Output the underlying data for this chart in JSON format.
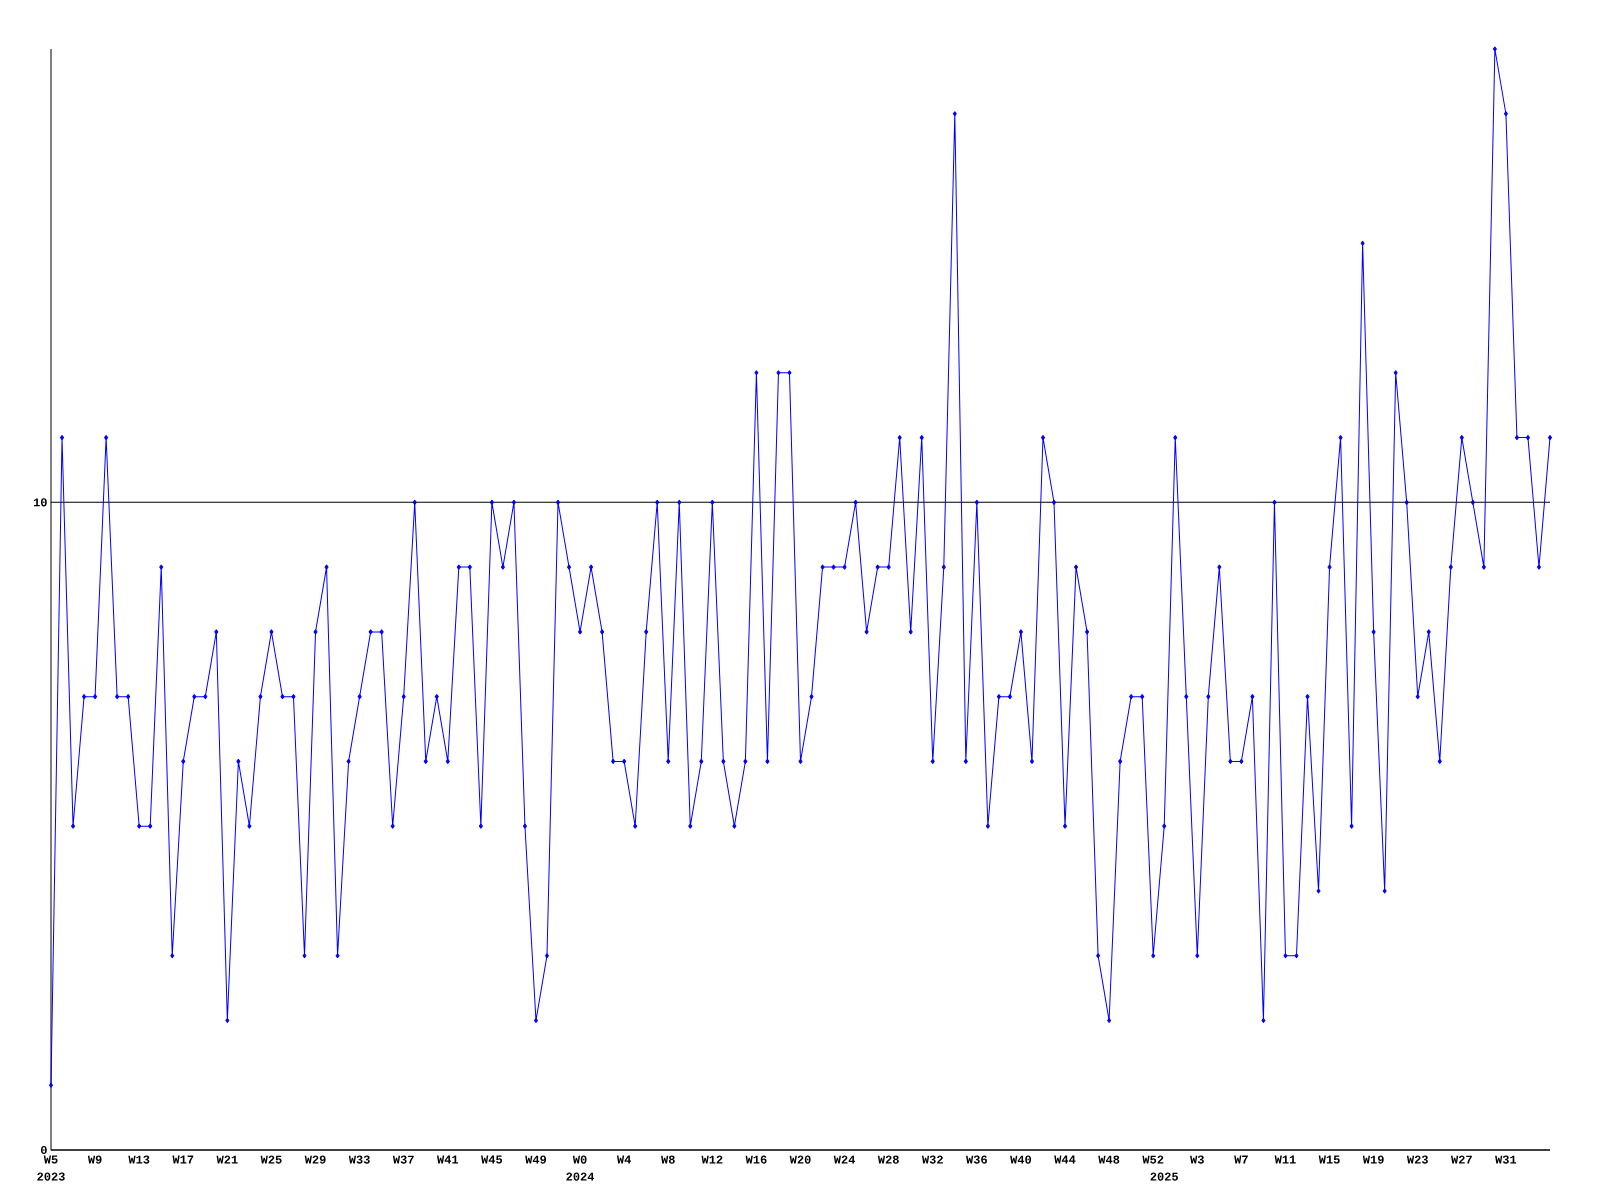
{
  "chart_data": {
    "type": "line",
    "x": [
      "2023-01-30",
      "2023-02-06",
      "2023-02-13",
      "2023-02-20",
      "2023-02-27",
      "2023-03-06",
      "2023-03-13",
      "2023-03-20",
      "2023-03-27",
      "2023-04-03",
      "2023-04-10",
      "2023-04-17",
      "2023-04-24",
      "2023-05-01",
      "2023-05-08",
      "2023-05-15",
      "2023-05-22",
      "2023-05-29",
      "2023-06-05",
      "2023-06-12",
      "2023-06-19",
      "2023-06-26",
      "2023-07-03",
      "2023-07-10",
      "2023-07-17",
      "2023-07-24",
      "2023-07-31",
      "2023-08-07",
      "2023-08-14",
      "2023-08-21",
      "2023-08-28",
      "2023-09-04",
      "2023-09-11",
      "2023-09-18",
      "2023-09-25",
      "2023-10-02",
      "2023-10-09",
      "2023-10-16",
      "2023-10-23",
      "2023-10-30",
      "2023-11-06",
      "2023-11-13",
      "2023-11-20",
      "2023-11-27",
      "2023-12-04",
      "2023-12-11",
      "2023-12-18",
      "2023-12-25",
      "2024-01-01",
      "2024-01-08",
      "2024-01-15",
      "2024-01-22",
      "2024-01-29",
      "2024-02-05",
      "2024-02-12",
      "2024-02-19",
      "2024-02-26",
      "2024-03-04",
      "2024-03-11",
      "2024-03-18",
      "2024-03-25",
      "2024-04-01",
      "2024-04-08",
      "2024-04-15",
      "2024-04-22",
      "2024-04-29",
      "2024-05-06",
      "2024-05-13",
      "2024-05-20",
      "2024-05-27",
      "2024-06-03",
      "2024-06-10",
      "2024-06-17",
      "2024-06-24",
      "2024-07-01",
      "2024-07-08",
      "2024-07-15",
      "2024-07-22",
      "2024-07-29",
      "2024-08-05",
      "2024-08-12",
      "2024-08-19",
      "2024-08-26",
      "2024-09-02",
      "2024-09-09",
      "2024-09-16",
      "2024-09-23",
      "2024-09-30",
      "2024-10-07",
      "2024-10-14",
      "2024-10-21",
      "2024-10-28",
      "2024-11-04",
      "2024-11-11",
      "2024-11-18",
      "2024-11-25",
      "2024-12-02",
      "2024-12-09",
      "2024-12-16",
      "2024-12-23",
      "2024-12-30",
      "2025-01-06",
      "2025-01-13",
      "2025-01-20",
      "2025-01-27",
      "2025-02-03",
      "2025-02-10",
      "2025-02-17",
      "2025-02-24",
      "2025-03-03",
      "2025-03-10",
      "2025-03-17",
      "2025-03-24",
      "2025-03-31",
      "2025-04-07",
      "2025-04-14",
      "2025-04-21",
      "2025-04-28",
      "2025-05-05",
      "2025-05-12",
      "2025-05-19",
      "2025-05-26",
      "2025-06-02",
      "2025-06-09",
      "2025-06-16",
      "2025-06-23",
      "2025-06-30",
      "2025-07-07",
      "2025-07-14",
      "2025-07-21",
      "2025-07-28",
      "2025-08-04",
      "2025-08-11",
      "2025-08-18",
      "2025-08-25",
      "2025-09-01",
      "2025-09-08"
    ],
    "values": [
      1,
      11,
      5,
      7,
      7,
      11,
      7,
      7,
      5,
      5,
      9,
      3,
      6,
      7,
      7,
      8,
      2,
      6,
      5,
      7,
      8,
      7,
      7,
      3,
      8,
      9,
      3,
      6,
      7,
      8,
      8,
      5,
      7,
      10,
      6,
      7,
      6,
      9,
      9,
      5,
      10,
      9,
      10,
      5,
      2,
      3,
      10,
      9,
      8,
      9,
      8,
      6,
      6,
      5,
      8,
      10,
      6,
      10,
      5,
      6,
      10,
      6,
      5,
      6,
      12,
      6,
      12,
      12,
      6,
      7,
      9,
      9,
      9,
      10,
      8,
      9,
      9,
      11,
      8,
      11,
      6,
      9,
      16,
      6,
      10,
      5,
      7,
      7,
      8,
      6,
      11,
      10,
      5,
      9,
      8,
      3,
      2,
      6,
      7,
      7,
      3,
      5,
      11,
      7,
      3,
      7,
      9,
      6,
      6,
      7,
      2,
      10,
      3,
      3,
      7,
      4,
      9,
      11,
      5,
      14,
      8,
      4,
      12,
      10,
      7,
      8,
      6,
      9,
      11,
      10,
      9,
      17,
      16,
      11,
      11,
      9,
      11
    ],
    "color": "#0000ff",
    "marker": "diamond",
    "grid": "y",
    "xlim": [
      "2023-01-30",
      "2025-09-08"
    ],
    "ylim": [
      0,
      17
    ],
    "yticks": [
      0,
      10
    ],
    "xticks": [
      {
        "value": "2023-01-30",
        "label": "W5"
      },
      {
        "value": "2023-02-27",
        "label": "W9"
      },
      {
        "value": "2023-03-27",
        "label": "W13"
      },
      {
        "value": "2023-04-24",
        "label": "W17"
      },
      {
        "value": "2023-05-22",
        "label": "W21"
      },
      {
        "value": "2023-06-19",
        "label": "W25"
      },
      {
        "value": "2023-07-17",
        "label": "W29"
      },
      {
        "value": "2023-08-14",
        "label": "W33"
      },
      {
        "value": "2023-09-11",
        "label": "W37"
      },
      {
        "value": "2023-10-09",
        "label": "W41"
      },
      {
        "value": "2023-11-06",
        "label": "W45"
      },
      {
        "value": "2023-12-04",
        "label": "W49"
      },
      {
        "value": "2024-01-01",
        "label": "W0"
      },
      {
        "value": "2024-01-29",
        "label": "W4"
      },
      {
        "value": "2024-02-26",
        "label": "W8"
      },
      {
        "value": "2024-03-25",
        "label": "W12"
      },
      {
        "value": "2024-04-22",
        "label": "W16"
      },
      {
        "value": "2024-05-20",
        "label": "W20"
      },
      {
        "value": "2024-06-17",
        "label": "W24"
      },
      {
        "value": "2024-07-15",
        "label": "W28"
      },
      {
        "value": "2024-08-12",
        "label": "W32"
      },
      {
        "value": "2024-09-09",
        "label": "W36"
      },
      {
        "value": "2024-10-07",
        "label": "W40"
      },
      {
        "value": "2024-11-04",
        "label": "W44"
      },
      {
        "value": "2024-12-02",
        "label": "W48"
      },
      {
        "value": "2024-12-30",
        "label": "W52"
      },
      {
        "value": "2025-01-27",
        "label": "W3"
      },
      {
        "value": "2025-02-24",
        "label": "W7"
      },
      {
        "value": "2025-03-24",
        "label": "W11"
      },
      {
        "value": "2025-04-21",
        "label": "W15"
      },
      {
        "value": "2025-05-19",
        "label": "W19"
      },
      {
        "value": "2025-06-16",
        "label": "W23"
      },
      {
        "value": "2025-07-14",
        "label": "W27"
      },
      {
        "value": "2025-08-11",
        "label": "W31"
      }
    ],
    "annotations": [
      "2023",
      "2024",
      "2025"
    ]
  }
}
